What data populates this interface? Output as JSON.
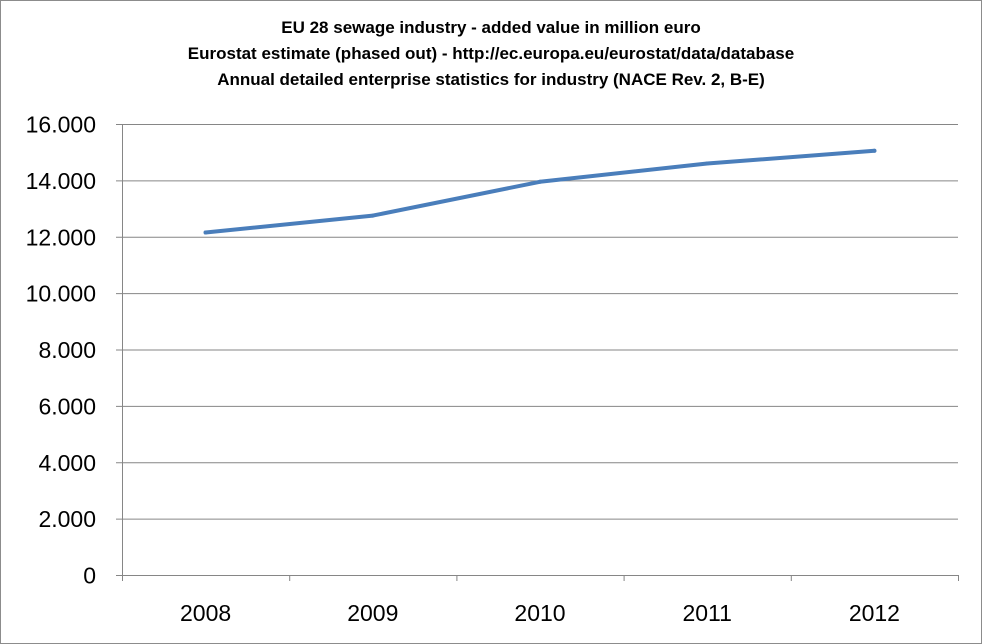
{
  "chart_data": {
    "type": "line",
    "title_lines": [
      "EU 28 sewage industry - added value in million euro",
      "Eurostat  estimate (phased out) - http://ec.europa.eu/eurostat/data/database",
      "Annual detailed enterprise statistics  for industry  (NACE Rev. 2, B-E)"
    ],
    "categories": [
      "2008",
      "2009",
      "2010",
      "2011",
      "2012"
    ],
    "values": [
      12150,
      12750,
      13950,
      14600,
      15050
    ],
    "ylim": [
      0,
      16000
    ],
    "yticks": [
      0,
      2000,
      4000,
      6000,
      8000,
      10000,
      12000,
      14000,
      16000
    ],
    "ytick_labels": [
      "0",
      "2.000",
      "4.000",
      "6.000",
      "8.000",
      "10.000",
      "12.000",
      "14.000",
      "16.000"
    ],
    "grid": true,
    "legend": "none",
    "line_color": "#4a7ebb",
    "grid_color": "#868686"
  }
}
